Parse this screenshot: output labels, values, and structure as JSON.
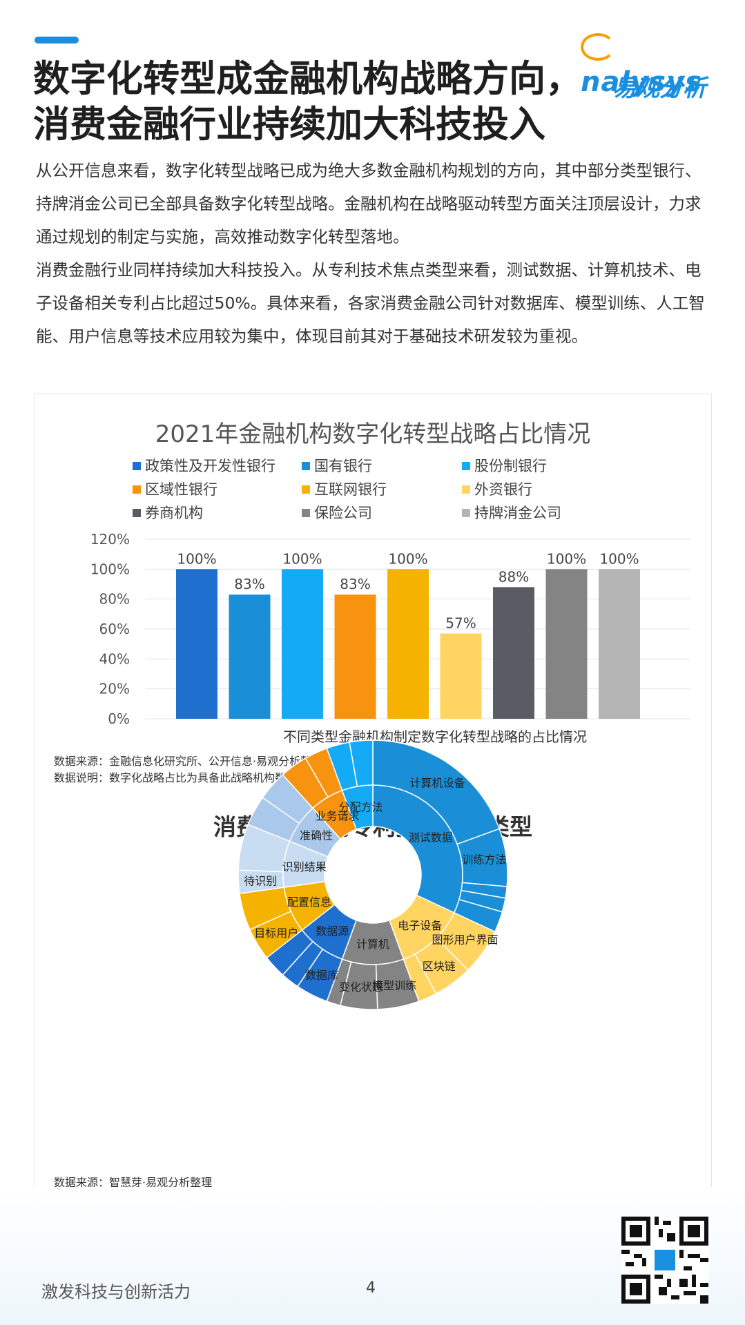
{
  "header": {
    "title_line1": "数字化转型成金融机构战略方向，",
    "title_line2": "消费金融行业持续加大科技投入",
    "brand_en": "nalysys",
    "brand_cn": "易观分析"
  },
  "body": {
    "paragraph1": "从公开信息来看，数字化转型战略已成为绝大多数金融机构规划的方向，其中部分类型银行、持牌消金公司已全部具备数字化转型战略。金融机构在战略驱动转型方面关注顶层设计，力求通过规划的制定与实施，高效推动数字化转型落地。",
    "paragraph2": "消费金融行业同样持续加大科技投入。从专利技术焦点类型来看，测试数据、计算机技术、电子设备相关专利占比超过50%。具体来看，各家消费金融公司针对数据库、模型训练、人工智能、用户信息等技术应用较为集中，体现目前其对于基础技术研发较为重视。"
  },
  "chart_data": [
    {
      "type": "bar",
      "title": "2021年金融机构数字化转型战略占比情况",
      "xlabel": "不同类型金融机构制定数字化转型战略的占比情况",
      "ylabel": "",
      "categories": [
        "政策性及开发性银行",
        "国有银行",
        "股份制银行",
        "区域性银行",
        "互联网银行",
        "外资银行",
        "券商机构",
        "保险公司",
        "持牌消金公司"
      ],
      "values": [
        100,
        83,
        100,
        83,
        100,
        57,
        88,
        100,
        100
      ],
      "data_labels": [
        "100%",
        "83%",
        "100%",
        "83%",
        "100%",
        "57%",
        "88%",
        "100%",
        "100%"
      ],
      "colors": [
        "#1f6fcf",
        "#1a8fd8",
        "#14aaf5",
        "#f7930e",
        "#f5b300",
        "#ffd460",
        "#595d63",
        "#848484",
        "#b4b4b4"
      ],
      "ylim": [
        0,
        120
      ],
      "yticks": [
        "0%",
        "20%",
        "40%",
        "60%",
        "80%",
        "100%",
        "120%"
      ],
      "legend_placement": "top",
      "grid": true
    },
    {
      "type": "pie",
      "subtype": "sunburst",
      "title": "消费金融公司专利技术焦点类型",
      "inner_labels": [
        "测试数据",
        "电子设备",
        "计算机",
        "数据源",
        "配置信息",
        "识别结果",
        "准确性",
        "业务请求",
        "分配方法"
      ],
      "outer_labels": [
        "计算机设备",
        "训练方法",
        "图形用户界面",
        "区块链",
        "模型训练",
        "变化状态",
        "数据库",
        "目标用户",
        "待识别"
      ]
    }
  ],
  "notes": {
    "chart1_source": "数据来源：金融信息化研究所、公开信息·易观分析整理",
    "chart1_desc": "数据说明：数字化战略占比为具备此战略机构数/总调研机构数",
    "chart2_source": "数据来源：智慧芽·易观分析整理"
  },
  "footer": {
    "slogan": "激发科技与创新活力",
    "page": "4"
  }
}
